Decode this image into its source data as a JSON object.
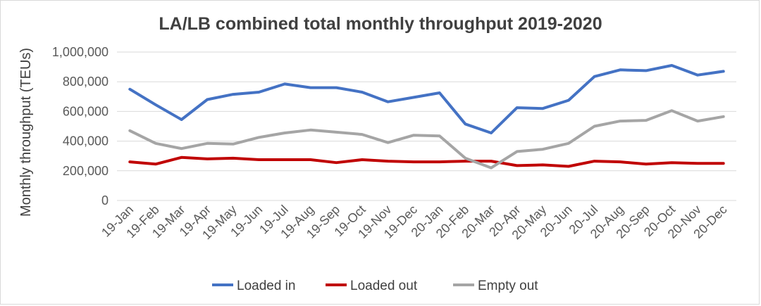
{
  "chart_data": {
    "type": "line",
    "title": "LA/LB combined total monthly throughput 2019-2020",
    "xlabel": "",
    "ylabel": "Monthly throughput (TEUs)",
    "ylim": [
      0,
      1000000
    ],
    "yticks": [
      0,
      200000,
      400000,
      600000,
      800000,
      1000000
    ],
    "ytick_labels": [
      "0",
      "200,000",
      "400,000",
      "600,000",
      "800,000",
      "1,000,000"
    ],
    "grid": true,
    "legend_position": "bottom",
    "categories": [
      "19-Jan",
      "19-Feb",
      "19-Mar",
      "19-Apr",
      "19-May",
      "19-Jun",
      "19-Jul",
      "19-Aug",
      "19-Sep",
      "19-Oct",
      "19-Nov",
      "19-Dec",
      "20-Jan",
      "20-Feb",
      "20-Mar",
      "20-Apr",
      "20-May",
      "20-Jun",
      "20-Jul",
      "20-Aug",
      "20-Sep",
      "20-Oct",
      "20-Nov",
      "20-Dec"
    ],
    "series": [
      {
        "name": "Loaded in",
        "color": "#4472C4",
        "values": [
          750000,
          645000,
          545000,
          680000,
          715000,
          730000,
          785000,
          760000,
          760000,
          730000,
          665000,
          695000,
          725000,
          515000,
          455000,
          625000,
          620000,
          675000,
          835000,
          880000,
          875000,
          910000,
          845000,
          870000
        ]
      },
      {
        "name": "Loaded out",
        "color": "#C00000",
        "values": [
          260000,
          245000,
          290000,
          280000,
          285000,
          275000,
          275000,
          275000,
          255000,
          275000,
          265000,
          260000,
          260000,
          265000,
          265000,
          235000,
          240000,
          230000,
          265000,
          260000,
          245000,
          255000,
          250000,
          250000
        ]
      },
      {
        "name": "Empty out",
        "color": "#A5A5A5",
        "values": [
          470000,
          385000,
          350000,
          385000,
          380000,
          425000,
          455000,
          475000,
          460000,
          445000,
          390000,
          440000,
          435000,
          285000,
          220000,
          330000,
          345000,
          385000,
          500000,
          535000,
          540000,
          605000,
          535000,
          565000
        ]
      }
    ]
  }
}
